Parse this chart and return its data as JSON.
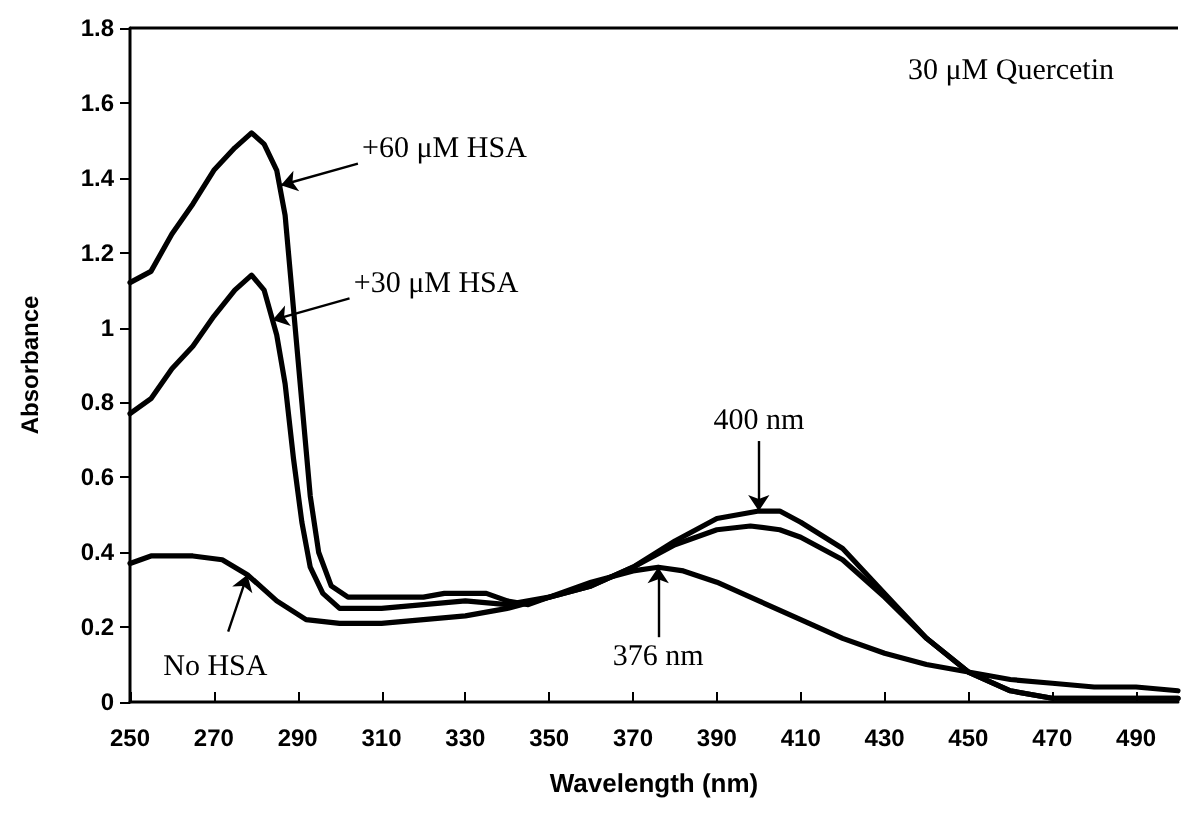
{
  "chart_data": {
    "type": "line",
    "xlabel": "Wavelength (nm)",
    "ylabel": "Absorbance",
    "xlim": [
      250,
      500
    ],
    "ylim": [
      0,
      1.8
    ],
    "xticks": [
      250,
      270,
      290,
      310,
      330,
      350,
      370,
      390,
      410,
      430,
      450,
      470,
      490
    ],
    "yticks": [
      0,
      0.2,
      0.4,
      0.6,
      0.8,
      1,
      1.2,
      1.4,
      1.6,
      1.8
    ],
    "grid": false,
    "marker": "none",
    "line_style": "solid",
    "series": [
      {
        "color": "#000000",
        "x": [
          250,
          255,
          260,
          265,
          270,
          275,
          279,
          282,
          285,
          287,
          289,
          291,
          293,
          295,
          298,
          302,
          310,
          320,
          325,
          335,
          340,
          345,
          350,
          360,
          370,
          380,
          390,
          400,
          405,
          410,
          420,
          430,
          440,
          450,
          460,
          470,
          480,
          500
        ],
        "values": [
          1.12,
          1.15,
          1.25,
          1.33,
          1.42,
          1.48,
          1.52,
          1.49,
          1.42,
          1.3,
          1.05,
          0.8,
          0.55,
          0.4,
          0.31,
          0.28,
          0.28,
          0.28,
          0.29,
          0.29,
          0.27,
          0.26,
          0.28,
          0.31,
          0.36,
          0.43,
          0.49,
          0.51,
          0.51,
          0.48,
          0.41,
          0.29,
          0.17,
          0.08,
          0.03,
          0.01,
          0.01,
          0.01
        ]
      },
      {
        "color": "#000000",
        "x": [
          250,
          255,
          260,
          265,
          270,
          275,
          279,
          282,
          285,
          287,
          289,
          291,
          293,
          296,
          300,
          310,
          320,
          330,
          340,
          350,
          360,
          370,
          380,
          390,
          398,
          405,
          410,
          420,
          430,
          440,
          450,
          460,
          470,
          500
        ],
        "values": [
          0.77,
          0.81,
          0.89,
          0.95,
          1.03,
          1.1,
          1.14,
          1.1,
          0.98,
          0.85,
          0.65,
          0.48,
          0.36,
          0.29,
          0.25,
          0.25,
          0.26,
          0.27,
          0.26,
          0.28,
          0.31,
          0.36,
          0.42,
          0.46,
          0.47,
          0.46,
          0.44,
          0.38,
          0.28,
          0.17,
          0.08,
          0.03,
          0.01,
          0.01
        ]
      },
      {
        "color": "#000000",
        "x": [
          250,
          255,
          265,
          272,
          278,
          285,
          292,
          300,
          310,
          320,
          330,
          340,
          350,
          360,
          370,
          376,
          382,
          390,
          400,
          410,
          420,
          430,
          440,
          450,
          460,
          470,
          480,
          490,
          500
        ],
        "values": [
          0.37,
          0.39,
          0.39,
          0.38,
          0.34,
          0.27,
          0.22,
          0.21,
          0.21,
          0.22,
          0.23,
          0.25,
          0.28,
          0.32,
          0.35,
          0.36,
          0.35,
          0.32,
          0.27,
          0.22,
          0.17,
          0.13,
          0.1,
          0.08,
          0.06,
          0.05,
          0.04,
          0.04,
          0.03
        ]
      }
    ],
    "annotations": [
      "30 μM Quercetin",
      {
        "text": "+60 μM HSA",
        "x": 286,
        "y": 1.38
      },
      {
        "text": "+30 μM HSA",
        "x": 284,
        "y": 1.02
      },
      {
        "text": "No HSA",
        "x": 278,
        "y": 0.34
      },
      {
        "text": "400 nm",
        "x": 400,
        "y": 0.51
      },
      {
        "text": "376 nm",
        "x": 376,
        "y": 0.36
      }
    ]
  }
}
